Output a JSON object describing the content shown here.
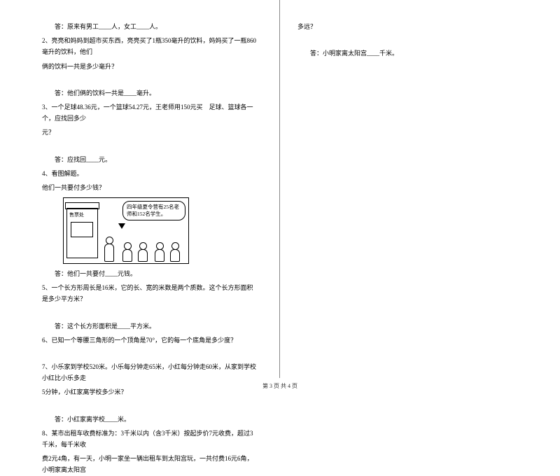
{
  "left": {
    "q1_ans": "答：原来有男工____人，女工____人。",
    "q2_line1": "2、亮亮和妈妈到超市买东西，亮亮买了1瓶350毫升的饮料，妈妈买了一瓶860毫升的饮料，他们",
    "q2_line2": "俩的饮料一共是多少毫升？",
    "q2_ans": "答：他们俩的饮料一共是____毫升。",
    "q3_line1": "3、一个足球48.36元，一个篮球54.27元，王老师用150元买　足球、篮球各一个，应找回多少",
    "q3_line2": "元？",
    "q3_ans": "答：应找回____元。",
    "q4_title": "4、看图解题。",
    "q4_sub": "他们一共要付多少钱？",
    "illust_booth": "售票处",
    "illust_bubble": "四年级夏令营有25名老师和152名学生。",
    "q4_ans": "答：他们一共要付____元钱。",
    "q5": "5、一个长方形周长是16米，它的长、宽的米数是两个质数。这个长方形面积是多少平方米？",
    "q5_ans": "答：这个长方形面积是____平方米。",
    "q6": "6、已知一个等腰三角形的一个顶角是70°，它的每一个底角是多少度？",
    "q7_line1": "7、小乐家到学校520米。小乐每分钟走65米，小红每分钟走60米，从家到学校小红比小乐多走",
    "q7_line2": "5分钟，小红家离学校多少米？",
    "q7_ans": "答：小红家离学校____米。",
    "q8_line1": "8、某市出租车收费标准为：3千米以内（含3千米）按起步价7元收费，超过3千米，每千米收",
    "q8_line2": "费2元4角，有一天，小明一家坐一辆出租车到太阳宫玩，一共付费16元6角，小明家离太阳宫"
  },
  "right": {
    "cont": "多远？",
    "ans": "答：小明家离太阳宫____千米。"
  },
  "footer": "第 3 页 共 4 页"
}
